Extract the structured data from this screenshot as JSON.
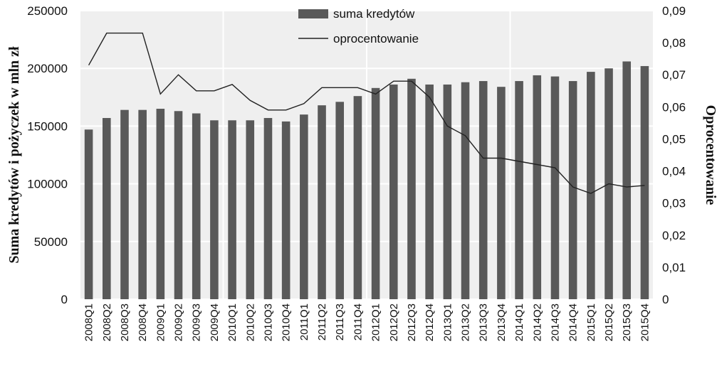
{
  "chart_data": {
    "type": "bar+line",
    "categories": [
      "2008Q1",
      "2008Q2",
      "2008Q3",
      "2008Q4",
      "2009Q1",
      "2009Q2",
      "2009Q3",
      "2009Q4",
      "2010Q1",
      "2010Q2",
      "2010Q3",
      "2010Q4",
      "2011Q1",
      "2011Q2",
      "2011Q3",
      "2011Q4",
      "2012Q1",
      "2012Q2",
      "2012Q3",
      "2012Q4",
      "2013Q1",
      "2013Q2",
      "2013Q3",
      "2013Q4",
      "2014Q1",
      "2014Q2",
      "2014Q3",
      "2014Q4",
      "2015Q1",
      "2015Q2",
      "2015Q3",
      "2015Q4"
    ],
    "series": [
      {
        "name": "suma kredytów",
        "type": "bar",
        "axis": "left",
        "color": "#595959",
        "values": [
          147000,
          157000,
          164000,
          164000,
          165000,
          163000,
          161000,
          155000,
          155000,
          155000,
          157000,
          154000,
          160000,
          168000,
          171000,
          176000,
          183000,
          186000,
          191000,
          186000,
          186000,
          188000,
          189000,
          184000,
          189000,
          194000,
          193000,
          189000,
          197000,
          200000,
          206000,
          202000
        ]
      },
      {
        "name": "oprocentowanie",
        "type": "line",
        "axis": "right",
        "color": "#222222",
        "values": [
          0.073,
          0.083,
          0.083,
          0.083,
          0.064,
          0.07,
          0.065,
          0.065,
          0.067,
          0.062,
          0.059,
          0.059,
          0.061,
          0.066,
          0.066,
          0.066,
          0.064,
          0.068,
          0.068,
          0.063,
          0.054,
          0.051,
          0.044,
          0.044,
          0.043,
          0.042,
          0.041,
          0.035,
          0.033,
          0.036,
          0.035,
          0.0355
        ]
      }
    ],
    "ylabel": "Suma kredytów i pożyczek w mln zł",
    "y2label": "Oprocentowanie",
    "ylim": [
      0,
      250000
    ],
    "y2lim": [
      0,
      0.09
    ],
    "yticks": [
      "0",
      "50000",
      "100000",
      "150000",
      "200000",
      "250000"
    ],
    "y2ticks": [
      "0",
      "0,01",
      "0,02",
      "0,03",
      "0,04",
      "0,05",
      "0,06",
      "0,07",
      "0,08",
      "0,09"
    ],
    "grid": true,
    "legend": "top-center"
  }
}
